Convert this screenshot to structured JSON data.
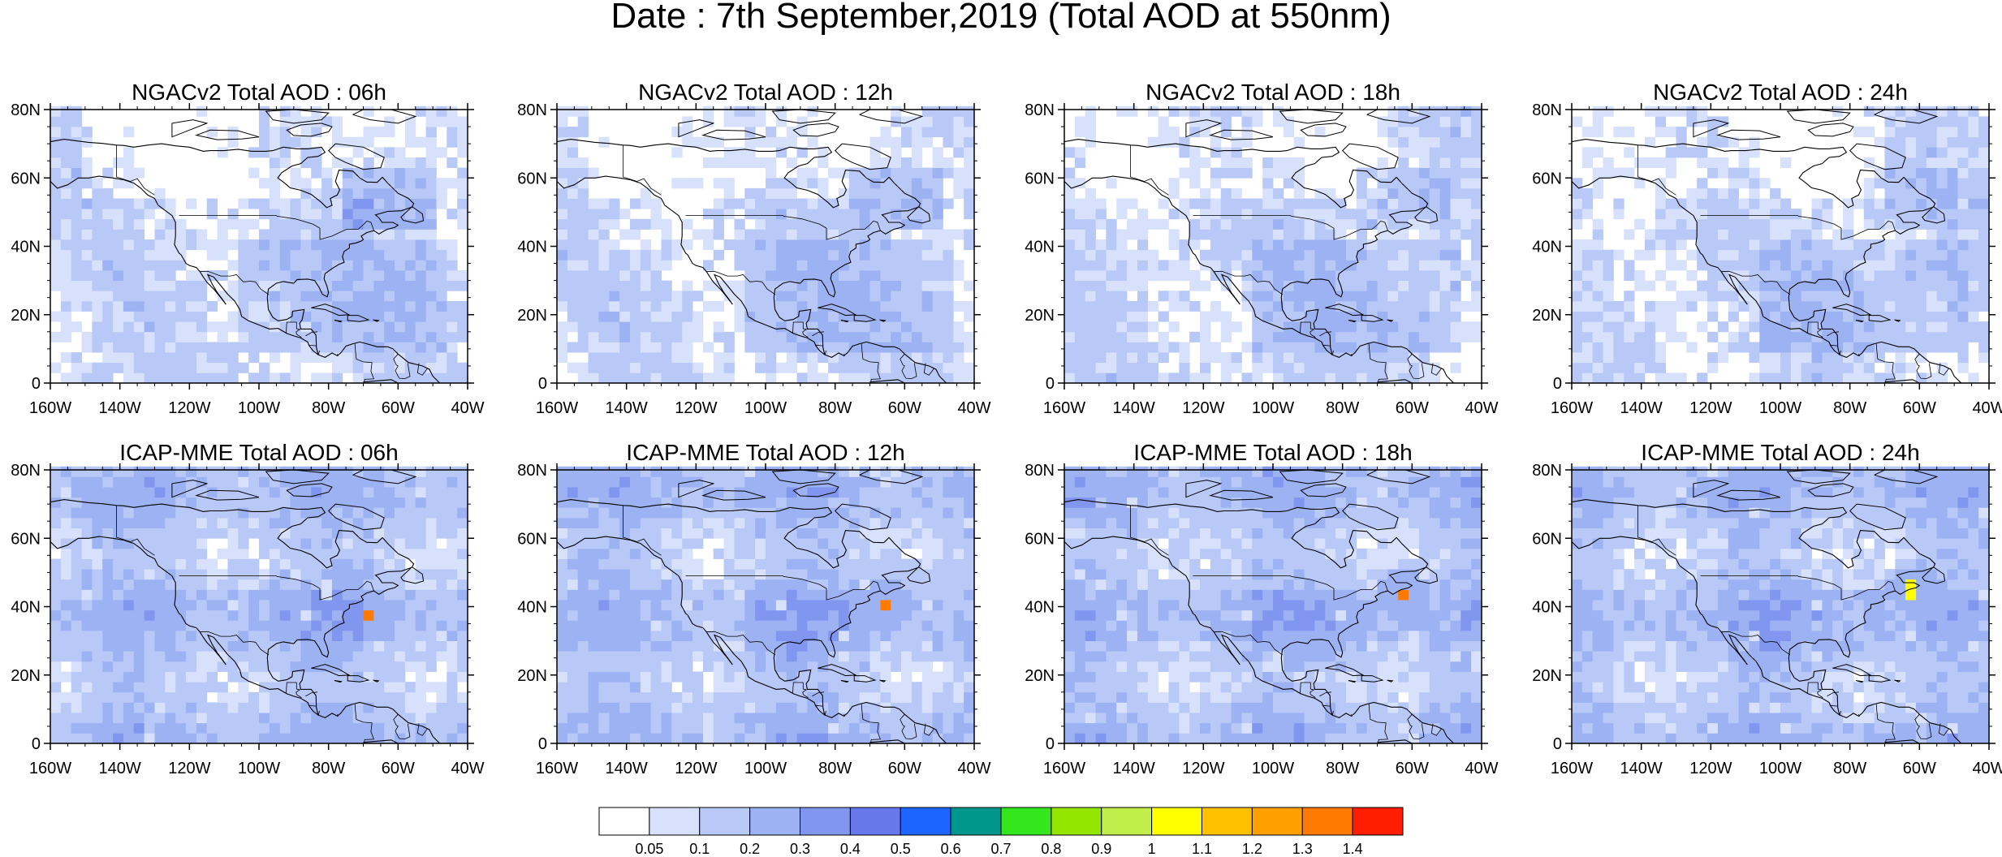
{
  "title": "Date : 7th September,2019 (Total AOD at 550nm)",
  "axes": {
    "lat_ticks": [
      "80N",
      "60N",
      "40N",
      "20N",
      "0"
    ],
    "lon_ticks": [
      "160W",
      "140W",
      "120W",
      "100W",
      "80W",
      "60W",
      "40W"
    ],
    "lat_range": [
      0,
      80
    ],
    "lon_range": [
      -160,
      -40
    ]
  },
  "panels": [
    {
      "title": "NGACv2 Total AOD : 06h",
      "model": "NGACv2",
      "hour": "06h"
    },
    {
      "title": "NGACv2 Total AOD : 12h",
      "model": "NGACv2",
      "hour": "12h"
    },
    {
      "title": "NGACv2 Total AOD : 18h",
      "model": "NGACv2",
      "hour": "18h"
    },
    {
      "title": "NGACv2 Total AOD : 24h",
      "model": "NGACv2",
      "hour": "24h"
    },
    {
      "title": "ICAP-MME Total AOD : 06h",
      "model": "ICAP-MME",
      "hour": "06h",
      "plume_center": [
        -68,
        38
      ]
    },
    {
      "title": "ICAP-MME Total AOD : 12h",
      "model": "ICAP-MME",
      "hour": "12h",
      "plume_center": [
        -65,
        40
      ]
    },
    {
      "title": "ICAP-MME Total AOD : 18h",
      "model": "ICAP-MME",
      "hour": "18h",
      "plume_center": [
        -63,
        43
      ]
    },
    {
      "title": "ICAP-MME Total AOD : 24h",
      "model": "ICAP-MME",
      "hour": "24h",
      "plume_center": [
        -62,
        45
      ]
    }
  ],
  "colorbar": {
    "labels": [
      "0.05",
      "0.1",
      "0.2",
      "0.3",
      "0.4",
      "0.5",
      "0.6",
      "0.7",
      "0.8",
      "0.9",
      "1",
      "1.1",
      "1.2",
      "1.3",
      "1.4"
    ],
    "colors": [
      "#ffffff",
      "#d7e1fb",
      "#b8c8f7",
      "#9db2f3",
      "#8196ee",
      "#6678ea",
      "#1e64ff",
      "#00968c",
      "#33e61e",
      "#94e600",
      "#c2ee4c",
      "#ffff00",
      "#ffc000",
      "#ffa000",
      "#ff7a00",
      "#ff1e00"
    ]
  }
}
